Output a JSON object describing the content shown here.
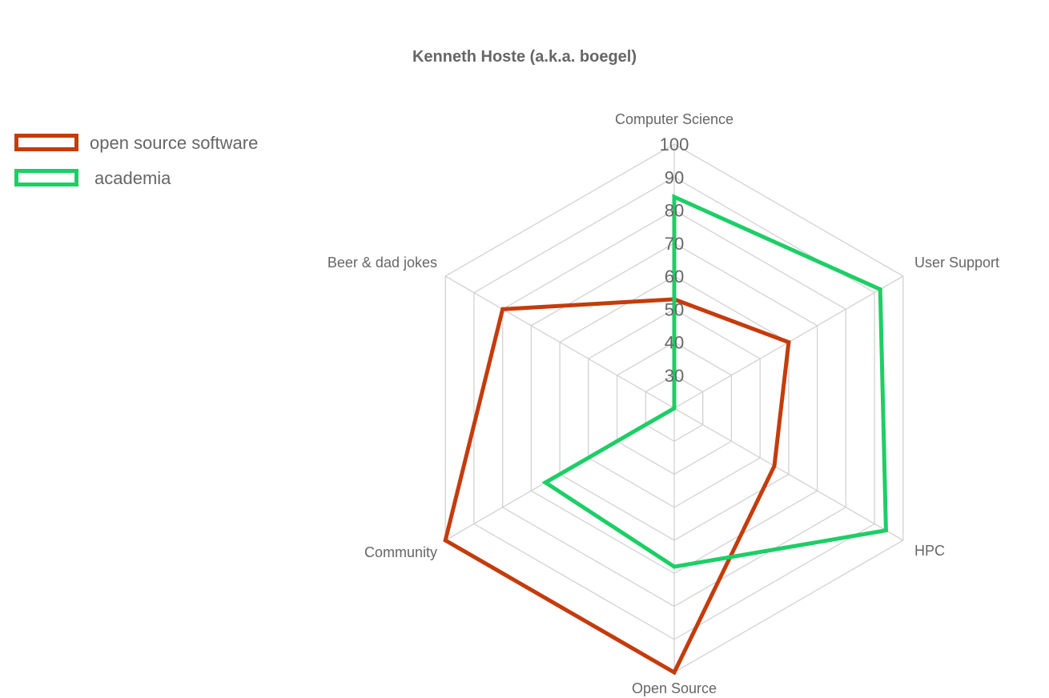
{
  "chart_data": {
    "type": "radar",
    "title": "Kenneth Hoste (a.k.a. boegel)",
    "axes": [
      "Computer Science",
      "User Support",
      "HPC",
      "Open Source",
      "Community",
      "Beer & dad jokes"
    ],
    "scale": {
      "min": 20,
      "max": 100,
      "ticks": [
        "30",
        "40",
        "50",
        "60",
        "70",
        "80",
        "90",
        "100"
      ]
    },
    "grid": true,
    "legend_position": "top-left",
    "series": [
      {
        "name": "open source software",
        "color": "#c43c0c",
        "values": [
          53,
          60,
          55,
          100,
          100,
          80
        ]
      },
      {
        "name": "academia",
        "color": "#1dce66",
        "values": [
          84,
          92,
          94,
          68,
          65,
          20
        ]
      }
    ]
  }
}
